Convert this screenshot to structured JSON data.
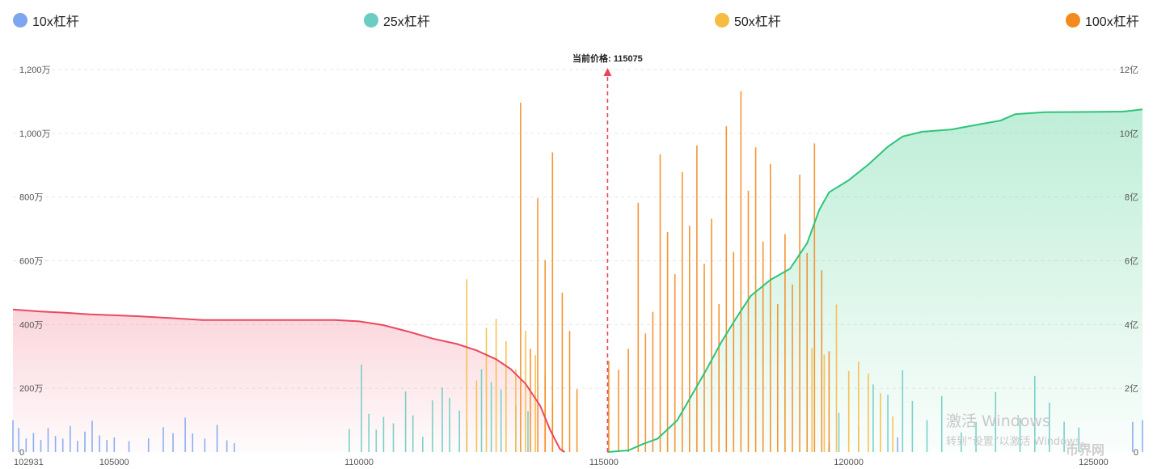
{
  "legend": [
    {
      "label": "10x杠杆",
      "color": "#7EA5F2"
    },
    {
      "label": "25x杠杆",
      "color": "#6ACCC3"
    },
    {
      "label": "50x杠杆",
      "color": "#F6BB42"
    },
    {
      "label": "100x杠杆",
      "color": "#F48A1E"
    }
  ],
  "watermark": {
    "line1": "激活 Windows",
    "line2": "转到“设置”以激活 Windows。"
  },
  "logo_text": "币界网",
  "chart_data": {
    "type": "bar",
    "current_price_label": "当前价格: 115075",
    "current_price": 115075,
    "x_range": [
      102931,
      126000
    ],
    "x_ticks": [
      {
        "value": 102931,
        "label": "102931"
      },
      {
        "value": 105000,
        "label": "105000"
      },
      {
        "value": 110000,
        "label": "110000"
      },
      {
        "value": 115000,
        "label": "115000"
      },
      {
        "value": 120000,
        "label": "120000"
      },
      {
        "value": 125000,
        "label": "125000"
      }
    ],
    "y_left": {
      "range": [
        0,
        12000000
      ],
      "ticks": [
        {
          "value": 0,
          "label": "0"
        },
        {
          "value": 2000000,
          "label": "200万"
        },
        {
          "value": 4000000,
          "label": "400万"
        },
        {
          "value": 6000000,
          "label": "600万"
        },
        {
          "value": 8000000,
          "label": "800万"
        },
        {
          "value": 10000000,
          "label": "1,000万"
        },
        {
          "value": 12000000,
          "label": "1,200万"
        }
      ]
    },
    "y_right": {
      "range": [
        0,
        1200000000
      ],
      "ticks": [
        {
          "value": 0,
          "label": "0"
        },
        {
          "value": 200000000,
          "label": "2亿"
        },
        {
          "value": 400000000,
          "label": "4亿"
        },
        {
          "value": 600000000,
          "label": "6亿"
        },
        {
          "value": 800000000,
          "label": "8亿"
        },
        {
          "value": 1000000000,
          "label": "10亿"
        },
        {
          "value": 1200000000,
          "label": "12亿"
        }
      ]
    },
    "grid": true,
    "legend_position": "top",
    "series": [
      {
        "leverage": "10x杠杆",
        "bars": [
          [
            102931,
            1000000
          ],
          [
            103050,
            750000
          ],
          [
            103200,
            420000
          ],
          [
            103350,
            600000
          ],
          [
            103500,
            380000
          ],
          [
            103650,
            750000
          ],
          [
            103800,
            500000
          ],
          [
            103950,
            420000
          ],
          [
            104100,
            820000
          ],
          [
            104250,
            350000
          ],
          [
            104400,
            640000
          ],
          [
            104550,
            980000
          ],
          [
            104700,
            520000
          ],
          [
            104850,
            380000
          ],
          [
            105000,
            460000
          ],
          [
            105300,
            340000
          ],
          [
            105700,
            430000
          ],
          [
            106000,
            780000
          ],
          [
            106200,
            590000
          ],
          [
            106450,
            1080000
          ],
          [
            106600,
            580000
          ],
          [
            106850,
            420000
          ],
          [
            107100,
            850000
          ],
          [
            107300,
            370000
          ],
          [
            107450,
            280000
          ],
          [
            119600,
            300000
          ],
          [
            121000,
            460000
          ],
          [
            125800,
            940000
          ],
          [
            126000,
            1000000
          ]
        ]
      },
      {
        "leverage": "25x杠杆",
        "bars": [
          [
            109800,
            720000
          ],
          [
            110050,
            2740000
          ],
          [
            110200,
            1200000
          ],
          [
            110350,
            700000
          ],
          [
            110500,
            1100000
          ],
          [
            110700,
            900000
          ],
          [
            110950,
            1900000
          ],
          [
            111100,
            1150000
          ],
          [
            111300,
            480000
          ],
          [
            111500,
            1620000
          ],
          [
            111700,
            2020000
          ],
          [
            111850,
            1700000
          ],
          [
            112050,
            1300000
          ],
          [
            112200,
            990000
          ],
          [
            112500,
            2600000
          ],
          [
            112700,
            2200000
          ],
          [
            112900,
            1960000
          ],
          [
            113200,
            1460000
          ],
          [
            113450,
            1280000
          ],
          [
            119800,
            1230000
          ],
          [
            120200,
            800000
          ],
          [
            120500,
            2120000
          ],
          [
            120800,
            1800000
          ],
          [
            121100,
            2560000
          ],
          [
            121300,
            1600000
          ],
          [
            121600,
            1000000
          ],
          [
            121900,
            1760000
          ],
          [
            122300,
            620000
          ],
          [
            122600,
            940000
          ],
          [
            123000,
            1880000
          ],
          [
            123500,
            1060000
          ],
          [
            123800,
            2390000
          ],
          [
            124100,
            1550000
          ],
          [
            124400,
            950000
          ],
          [
            124700,
            770000
          ]
        ]
      },
      {
        "leverage": "50x杠杆",
        "bars": [
          [
            112200,
            5420000
          ],
          [
            112400,
            2240000
          ],
          [
            112600,
            3900000
          ],
          [
            112800,
            4180000
          ],
          [
            113000,
            3480000
          ],
          [
            113200,
            2590000
          ],
          [
            113400,
            3800000
          ],
          [
            113600,
            3040000
          ],
          [
            113800,
            2420000
          ],
          [
            113950,
            1560000
          ],
          [
            119250,
            3260000
          ],
          [
            119500,
            3060000
          ],
          [
            119750,
            4630000
          ],
          [
            120000,
            2540000
          ],
          [
            120200,
            2840000
          ],
          [
            120400,
            2460000
          ],
          [
            120650,
            1850000
          ],
          [
            120900,
            1120000
          ]
        ]
      },
      {
        "leverage": "100x杠杆",
        "bars": [
          [
            113300,
            10960000
          ],
          [
            113500,
            3240000
          ],
          [
            113650,
            7960000
          ],
          [
            113800,
            6020000
          ],
          [
            113950,
            9400000
          ],
          [
            114150,
            5000000
          ],
          [
            114300,
            3800000
          ],
          [
            114450,
            1970000
          ],
          [
            115100,
            2860000
          ],
          [
            115300,
            2580000
          ],
          [
            115500,
            3240000
          ],
          [
            115700,
            7820000
          ],
          [
            115850,
            3720000
          ],
          [
            116000,
            4400000
          ],
          [
            116150,
            9340000
          ],
          [
            116300,
            6900000
          ],
          [
            116450,
            5580000
          ],
          [
            116600,
            8780000
          ],
          [
            116750,
            7100000
          ],
          [
            116900,
            9620000
          ],
          [
            117050,
            5900000
          ],
          [
            117200,
            7320000
          ],
          [
            117350,
            4640000
          ],
          [
            117500,
            10220000
          ],
          [
            117650,
            6280000
          ],
          [
            117800,
            11320000
          ],
          [
            117950,
            8200000
          ],
          [
            118100,
            9560000
          ],
          [
            118250,
            6600000
          ],
          [
            118400,
            9040000
          ],
          [
            118550,
            4640000
          ],
          [
            118700,
            6840000
          ],
          [
            118850,
            5260000
          ],
          [
            119000,
            8700000
          ],
          [
            119150,
            6240000
          ],
          [
            119300,
            9680000
          ],
          [
            119450,
            5700000
          ],
          [
            119600,
            3160000
          ]
        ]
      }
    ],
    "cumulative_short": {
      "axis": "right",
      "color": "#E84A5F",
      "points": [
        [
          102931,
          447000000
        ],
        [
          103500,
          441000000
        ],
        [
          104000,
          437000000
        ],
        [
          104500,
          432000000
        ],
        [
          105000,
          429000000
        ],
        [
          105500,
          426000000
        ],
        [
          106200,
          420000000
        ],
        [
          106800,
          414000000
        ],
        [
          107500,
          414000000
        ],
        [
          108500,
          414000000
        ],
        [
          109500,
          414000000
        ],
        [
          110000,
          410000000
        ],
        [
          110500,
          398000000
        ],
        [
          111000,
          378000000
        ],
        [
          111500,
          356000000
        ],
        [
          112000,
          339000000
        ],
        [
          112400,
          319000000
        ],
        [
          112800,
          291000000
        ],
        [
          113100,
          260000000
        ],
        [
          113400,
          214000000
        ],
        [
          113700,
          145000000
        ],
        [
          113900,
          70000000
        ],
        [
          114100,
          10000000
        ],
        [
          114200,
          0
        ]
      ]
    },
    "cumulative_long": {
      "axis": "right",
      "color": "#2DC47A",
      "points": [
        [
          115075,
          0
        ],
        [
          115500,
          5000000
        ],
        [
          115800,
          25000000
        ],
        [
          116100,
          42000000
        ],
        [
          116500,
          100000000
        ],
        [
          116800,
          180000000
        ],
        [
          117100,
          260000000
        ],
        [
          117400,
          345000000
        ],
        [
          117700,
          420000000
        ],
        [
          118000,
          490000000
        ],
        [
          118400,
          540000000
        ],
        [
          118800,
          575000000
        ],
        [
          119150,
          655000000
        ],
        [
          119400,
          760000000
        ],
        [
          119600,
          815000000
        ],
        [
          120000,
          853000000
        ],
        [
          120400,
          902000000
        ],
        [
          120800,
          958000000
        ],
        [
          121100,
          990000000
        ],
        [
          121500,
          1005000000
        ],
        [
          122100,
          1012000000
        ],
        [
          122700,
          1029000000
        ],
        [
          123100,
          1040000000
        ],
        [
          123400,
          1060000000
        ],
        [
          124000,
          1066000000
        ],
        [
          125000,
          1067000000
        ],
        [
          125600,
          1068000000
        ],
        [
          126000,
          1075000000
        ]
      ]
    }
  }
}
